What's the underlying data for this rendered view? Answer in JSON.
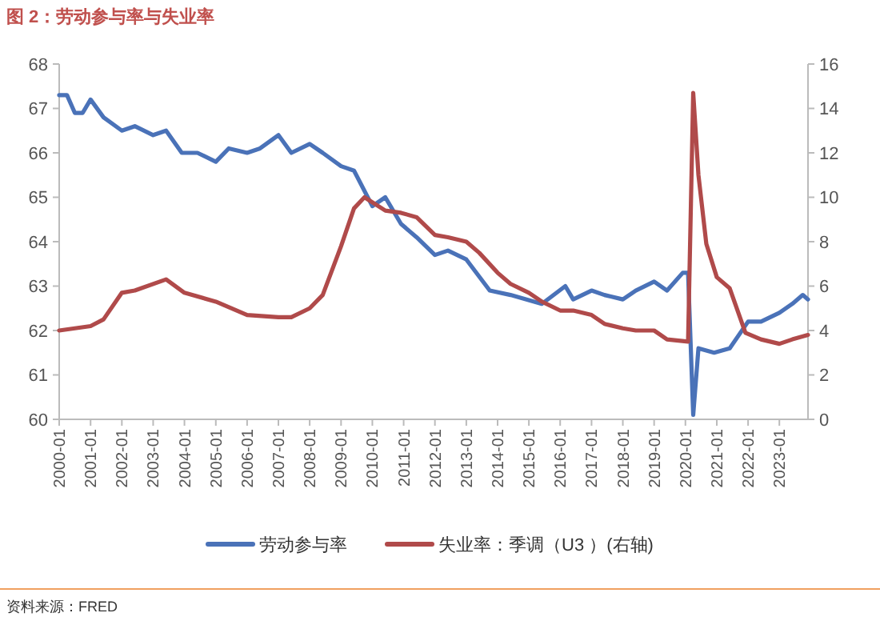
{
  "chart_data": {
    "type": "line",
    "title": "图 2：劳动参与率与失业率",
    "annotations": [
      "资料来源：FRED"
    ],
    "xlim": [
      "2000-01",
      "2023-12"
    ],
    "xticks": [
      "2000-01",
      "2001-01",
      "2002-01",
      "2003-01",
      "2004-01",
      "2005-01",
      "2006-01",
      "2007-01",
      "2008-01",
      "2009-01",
      "2010-01",
      "2011-01",
      "2012-01",
      "2013-01",
      "2014-01",
      "2015-01",
      "2016-01",
      "2017-01",
      "2018-01",
      "2019-01",
      "2020-01",
      "2021-01",
      "2022-01",
      "2023-01"
    ],
    "ylim": [
      60,
      68
    ],
    "yticks": [
      60,
      61,
      62,
      63,
      64,
      65,
      66,
      67,
      68
    ],
    "y2lim": [
      0,
      16
    ],
    "y2ticks": [
      0,
      2,
      4,
      6,
      8,
      10,
      12,
      14,
      16
    ],
    "grid": false,
    "legend": "bottom",
    "line_style": "solid",
    "marker": "none",
    "series": [
      {
        "name": "劳动参与率",
        "color": "#4a72b8",
        "x": [
          "2000-01",
          "2000-04",
          "2000-07",
          "2000-10",
          "2001-01",
          "2001-06",
          "2002-01",
          "2002-06",
          "2003-01",
          "2003-06",
          "2003-12",
          "2004-06",
          "2005-01",
          "2005-06",
          "2006-01",
          "2006-06",
          "2007-01",
          "2007-06",
          "2008-01",
          "2008-06",
          "2009-01",
          "2009-06",
          "2010-01",
          "2010-06",
          "2010-12",
          "2011-06",
          "2012-01",
          "2012-06",
          "2013-01",
          "2013-10",
          "2014-06",
          "2015-06",
          "2016-03",
          "2016-06",
          "2017-01",
          "2017-06",
          "2018-01",
          "2018-06",
          "2019-01",
          "2019-06",
          "2019-12",
          "2020-02",
          "2020-04",
          "2020-06",
          "2020-12",
          "2021-06",
          "2022-01",
          "2022-06",
          "2023-01",
          "2023-06",
          "2023-10",
          "2023-12"
        ],
        "values": [
          67.3,
          67.3,
          66.9,
          66.9,
          67.2,
          66.8,
          66.5,
          66.6,
          66.4,
          66.5,
          66.0,
          66.0,
          65.8,
          66.1,
          66.0,
          66.1,
          66.4,
          66.0,
          66.2,
          66.0,
          65.7,
          65.6,
          64.8,
          65.0,
          64.4,
          64.1,
          63.7,
          63.8,
          63.6,
          62.9,
          62.8,
          62.6,
          63.0,
          62.7,
          62.9,
          62.8,
          62.7,
          62.9,
          63.1,
          62.9,
          63.3,
          63.3,
          60.1,
          61.6,
          61.5,
          61.6,
          62.2,
          62.2,
          62.4,
          62.6,
          62.8,
          62.7
        ]
      },
      {
        "name": "失业率：季调（U3 ）(右轴)",
        "color": "#b04a4a",
        "axis": "y2",
        "x": [
          "2000-01",
          "2001-01",
          "2001-06",
          "2002-01",
          "2002-06",
          "2003-06",
          "2004-01",
          "2005-01",
          "2006-01",
          "2007-01",
          "2007-06",
          "2008-01",
          "2008-06",
          "2009-01",
          "2009-06",
          "2009-10",
          "2010-06",
          "2010-12",
          "2011-06",
          "2012-01",
          "2012-06",
          "2013-01",
          "2013-06",
          "2014-01",
          "2014-06",
          "2015-01",
          "2015-06",
          "2016-01",
          "2016-06",
          "2017-01",
          "2017-06",
          "2018-01",
          "2018-06",
          "2019-01",
          "2019-06",
          "2020-02",
          "2020-04",
          "2020-06",
          "2020-09",
          "2021-01",
          "2021-06",
          "2021-12",
          "2022-06",
          "2023-01",
          "2023-06",
          "2023-12"
        ],
        "values": [
          4.0,
          4.2,
          4.5,
          5.7,
          5.8,
          6.3,
          5.7,
          5.3,
          4.7,
          4.6,
          4.6,
          5.0,
          5.6,
          7.8,
          9.5,
          10.0,
          9.4,
          9.3,
          9.1,
          8.3,
          8.2,
          8.0,
          7.5,
          6.6,
          6.1,
          5.7,
          5.3,
          4.9,
          4.9,
          4.7,
          4.3,
          4.1,
          4.0,
          4.0,
          3.6,
          3.5,
          14.7,
          11.0,
          7.9,
          6.4,
          5.9,
          3.9,
          3.6,
          3.4,
          3.6,
          3.8
        ]
      }
    ]
  }
}
